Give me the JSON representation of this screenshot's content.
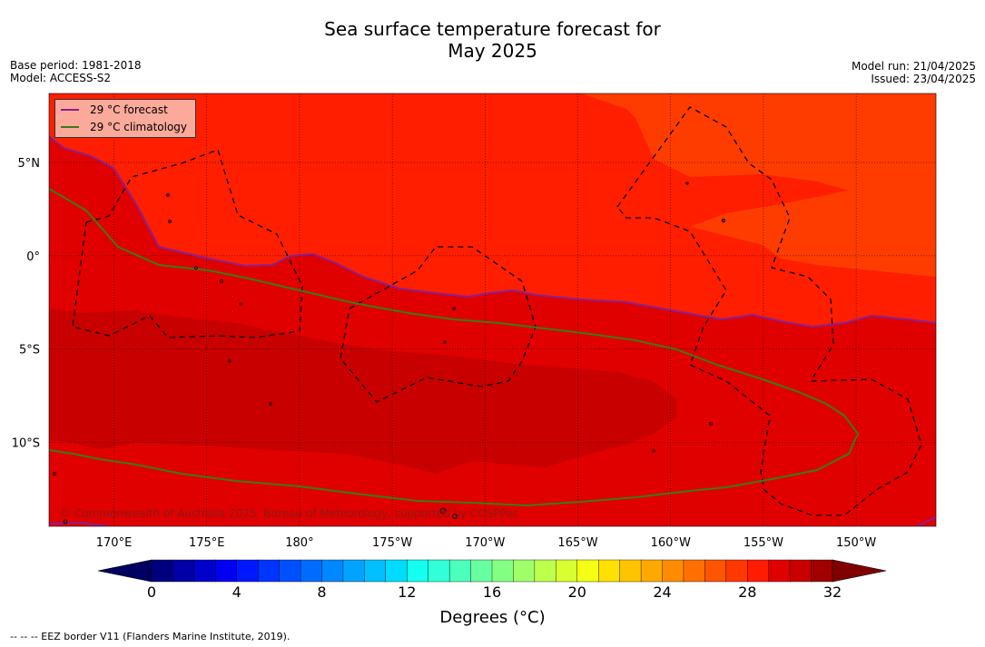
{
  "title_line1": "Sea surface temperature forecast for",
  "title_line2": "May 2025",
  "meta_left": [
    "Base period: 1981-2018",
    "Model: ACCESS-S2"
  ],
  "meta_right": [
    "Model run: 21/04/2025",
    "Issued: 23/04/2025"
  ],
  "legend": [
    {
      "label": "29 °C  forecast",
      "color": "#8b1f8f"
    },
    {
      "label": "29 °C  climatology",
      "color": "#3a7a18"
    }
  ],
  "map_extent": {
    "lon_min": 166.5,
    "lon_max": 214.3,
    "lat_min": -14.5,
    "lat_max": 8.7
  },
  "lon_ticks": [
    {
      "lon": 170,
      "label": "170°E"
    },
    {
      "lon": 175,
      "label": "175°E"
    },
    {
      "lon": 180,
      "label": "180°"
    },
    {
      "lon": 185,
      "label": "175°W"
    },
    {
      "lon": 190,
      "label": "170°W"
    },
    {
      "lon": 195,
      "label": "165°W"
    },
    {
      "lon": 200,
      "label": "160°W"
    },
    {
      "lon": 205,
      "label": "155°W"
    },
    {
      "lon": 210,
      "label": "150°W"
    }
  ],
  "lat_ticks": [
    {
      "lat": 5,
      "label": "5°N"
    },
    {
      "lat": 0,
      "label": "0°"
    },
    {
      "lat": -5,
      "label": "5°S"
    },
    {
      "lat": -10,
      "label": "10°S"
    }
  ],
  "colors": {
    "sst_31": "#c80000",
    "sst_30": "#e00000",
    "sst_29": "#ff1e00",
    "sst_28": "#ff3c00",
    "forecast_line": "#8b1f8f",
    "climatology_line": "#3a7a18"
  },
  "colorbar": {
    "min": 0,
    "max": 32,
    "step": 1,
    "colors": [
      "#00007f",
      "#0000a6",
      "#0000cc",
      "#0000f2",
      "#0018ff",
      "#0034ff",
      "#0050ff",
      "#006cff",
      "#0088ff",
      "#00a4ff",
      "#00c0ff",
      "#00dcff",
      "#14fff0",
      "#30ffd8",
      "#4cffbc",
      "#68ffa0",
      "#84ff84",
      "#a0ff68",
      "#bcff4c",
      "#d8ff30",
      "#f4ff14",
      "#ffe000",
      "#ffc400",
      "#ffa800",
      "#ff8c00",
      "#ff7000",
      "#ff5400",
      "#ff3800",
      "#ff1c00",
      "#e00000",
      "#c80000",
      "#a00000"
    ],
    "under_color": "#000060",
    "over_color": "#800000",
    "tick_values": [
      0,
      4,
      8,
      12,
      16,
      20,
      24,
      28,
      32
    ],
    "label": "Degrees (°C)"
  },
  "watermark": "© Commonwealth of Australia 2025, Bureau of Meteorology, supported by COSPPac",
  "footnote": "--  --  -- EEZ border V11 (Flanders Marine Institute, 2019)."
}
